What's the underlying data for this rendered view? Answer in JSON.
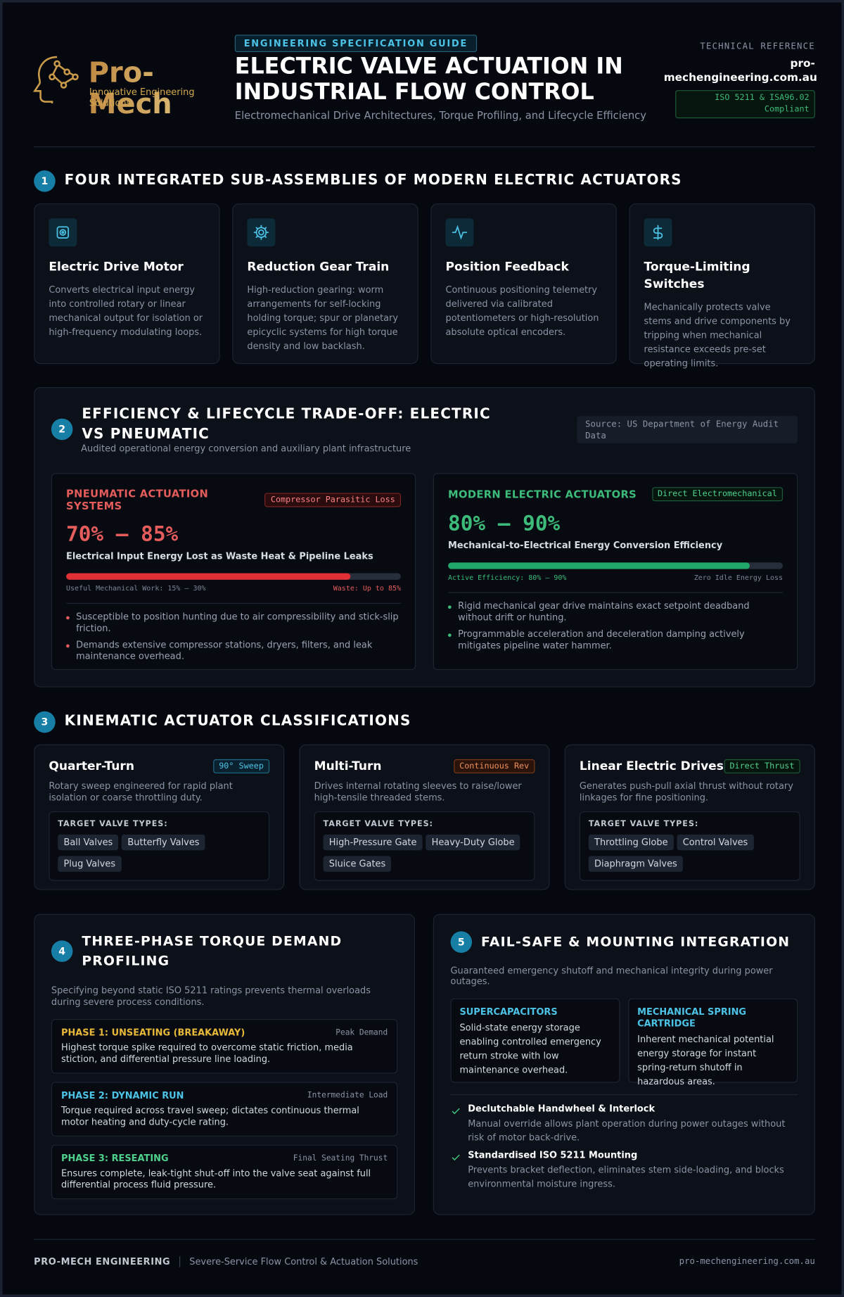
{
  "header": {
    "logo_name": "Pro-Mech",
    "logo_tagline": "Innovative Engineering Solutions",
    "badge": "ENGINEERING SPECIFICATION GUIDE",
    "title": "ELECTRIC VALVE ACTUATION IN INDUSTRIAL FLOW CONTROL",
    "subtitle": "Electromechanical Drive Architectures, Torque Profiling, and Lifecycle Efficiency",
    "ref_label": "TECHNICAL REFERENCE",
    "ref_site": "pro-mechengineering.com.au",
    "compliance": "ISO 5211 & ISA96.02 Compliant"
  },
  "subassemblies": {
    "number": "1",
    "title": "FOUR INTEGRATED SUB-ASSEMBLIES OF MODERN ELECTRIC ACTUATORS",
    "cards": [
      {
        "title": "Electric Drive Motor",
        "text": "Converts electrical input energy into controlled rotary or linear mechanical output for isolation or high-frequency modulating loops."
      },
      {
        "title": "Reduction Gear Train",
        "text": "High-reduction gearing: worm arrangements for self-locking holding torque; spur or planetary epicyclic systems for high torque density and low backlash."
      },
      {
        "title": "Position Feedback",
        "text": "Continuous positioning telemetry delivered via calibrated potentiometers or high-resolution absolute optical encoders."
      },
      {
        "title": "Torque-Limiting Switches",
        "text": "Mechanically protects valve stems and drive components by tripping when mechanical resistance exceeds pre-set operating limits."
      }
    ]
  },
  "efficiency": {
    "number": "2",
    "title": "EFFICIENCY & LIFECYCLE TRADE-OFF: ELECTRIC VS PNEUMATIC",
    "subtitle": "Audited operational energy conversion and auxiliary plant infrastructure",
    "source": "Source: US Department of Energy Audit Data",
    "pneumatic": {
      "heading": "PNEUMATIC ACTUATION SYSTEMS",
      "tag": "Compressor Parasitic Loss",
      "range": "70% – 85%",
      "caption": "Electrical Input Energy Lost as Waste Heat & Pipeline Leaks",
      "scale_left": "Useful Mechanical Work: 15% – 30%",
      "bar": {
        "value": 85,
        "label": "Waste: Up to 85%"
      },
      "bullets": [
        "Susceptible to position hunting due to air compressibility and stick-slip friction.",
        "Demands extensive compressor stations, dryers, filters, and leak maintenance overhead."
      ]
    },
    "electric": {
      "heading": "MODERN ELECTRIC ACTUATORS",
      "tag": "Direct Electromechanical",
      "range": "80% – 90%",
      "caption": "Mechanical-to-Electrical Energy Conversion Efficiency",
      "bar": {
        "value": 90,
        "label": "Active Efficiency: 80% – 90%"
      },
      "scale_right": "Zero Idle Energy Loss",
      "bullets": [
        "Rigid mechanical gear drive maintains exact setpoint deadband without drift or hunting.",
        "Programmable acceleration and deceleration damping actively mitigates pipeline water hammer."
      ]
    }
  },
  "classifications": {
    "number": "3",
    "title": "KINEMATIC ACTUATOR CLASSIFICATIONS",
    "cards": [
      {
        "title": "Quarter-Turn",
        "tag": "90° Sweep",
        "text": "Rotary sweep engineered for rapid plant isolation or coarse throttling duty.",
        "targets_label": "TARGET VALVE TYPES:",
        "targets": [
          "Ball Valves",
          "Butterfly Valves",
          "Plug Valves"
        ]
      },
      {
        "title": "Multi-Turn",
        "tag": "Continuous Rev",
        "text": "Drives internal rotating sleeves to raise/lower high-tensile threaded stems.",
        "targets_label": "TARGET VALVE TYPES:",
        "targets": [
          "High-Pressure Gate",
          "Heavy-Duty Globe",
          "Sluice Gates"
        ]
      },
      {
        "title": "Linear Electric Drives",
        "tag": "Direct Thrust",
        "text": "Generates push-pull axial thrust without rotary linkages for fine positioning.",
        "targets_label": "TARGET VALVE TYPES:",
        "targets": [
          "Throttling Globe",
          "Control Valves",
          "Diaphragm Valves"
        ]
      }
    ]
  },
  "torque": {
    "number": "4",
    "title": "THREE-PHASE TORQUE DEMAND PROFILING",
    "intro": "Specifying beyond static ISO 5211 ratings prevents thermal overloads during severe process conditions.",
    "phases": [
      {
        "name": "PHASE 1: UNSEATING (BREAKAWAY)",
        "tag": "Peak Demand",
        "text": "Highest torque spike required to overcome static friction, media stiction, and differential pressure line loading."
      },
      {
        "name": "PHASE 2: DYNAMIC RUN",
        "tag": "Intermediate Load",
        "text": "Torque required across travel sweep; dictates continuous thermal motor heating and duty-cycle rating."
      },
      {
        "name": "PHASE 3: RESEATING",
        "tag": "Final Seating Thrust",
        "text": "Ensures complete, leak-tight shut-off into the valve seat against full differential process fluid pressure."
      }
    ]
  },
  "failsafe": {
    "number": "5",
    "title": "FAIL-SAFE & MOUNTING INTEGRATION",
    "intro": "Guaranteed emergency shutoff and mechanical integrity during power outages.",
    "storage": [
      {
        "title": "SUPERCAPACITORS",
        "text": "Solid-state energy storage enabling controlled emergency return stroke with low maintenance overhead."
      },
      {
        "title": "MECHANICAL SPRING CARTRIDGE",
        "text": "Inherent mechanical potential energy storage for instant spring-return shutoff in hazardous areas."
      }
    ],
    "features": [
      {
        "title": "Declutchable Handwheel & Interlock",
        "text": "Manual override allows plant operation during power outages without risk of motor back-drive."
      },
      {
        "title": "Standardised ISO 5211 Mounting",
        "text": "Prevents bracket deflection, eliminates stem side-loading, and blocks environmental moisture ingress."
      }
    ]
  },
  "footer": {
    "brand": "PRO-MECH ENGINEERING",
    "tagline": "Severe-Service Flow Control & Actuation Solutions",
    "site": "pro-mechengineering.com.au"
  }
}
